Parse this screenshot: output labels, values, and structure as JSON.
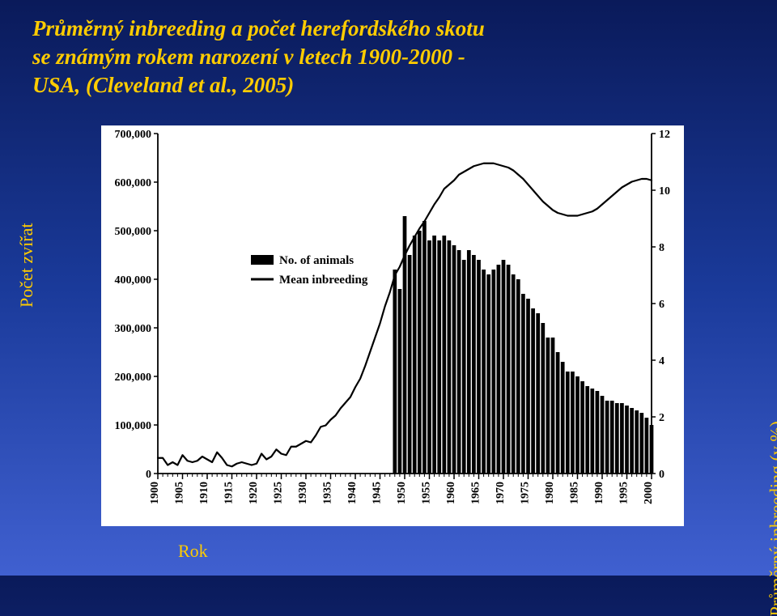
{
  "title_line1": "Průměrný inbreeding a počet herefordského skotu",
  "title_line2": "se známým rokem narození v letech 1900-2000 -",
  "title_line3": "USA, (Cleveland et al., 2005)",
  "y_left_axis_label": "Počet zvířat",
  "y_right_axis_label": "Průměrný inbreeding (v %)",
  "x_axis_label": "Rok",
  "legend": {
    "bars_label": "No. of animals",
    "line_label": "Mean inbreeding"
  },
  "chart": {
    "type": "dual-axis bar+line",
    "background_color": "#ffffff",
    "axis_color": "#000000",
    "bar_color": "#000000",
    "line_color": "#000000",
    "line_width": 2.2,
    "axis_font_size": 14,
    "axis_font_weight": "bold",
    "x_years": [
      1900,
      1901,
      1902,
      1903,
      1904,
      1905,
      1906,
      1907,
      1908,
      1909,
      1910,
      1911,
      1912,
      1913,
      1914,
      1915,
      1916,
      1917,
      1918,
      1919,
      1920,
      1921,
      1922,
      1923,
      1924,
      1925,
      1926,
      1927,
      1928,
      1929,
      1930,
      1931,
      1932,
      1933,
      1934,
      1935,
      1936,
      1937,
      1938,
      1939,
      1940,
      1941,
      1942,
      1943,
      1944,
      1945,
      1946,
      1947,
      1948,
      1949,
      1950,
      1951,
      1952,
      1953,
      1954,
      1955,
      1956,
      1957,
      1958,
      1959,
      1960,
      1961,
      1962,
      1963,
      1964,
      1965,
      1966,
      1967,
      1968,
      1969,
      1970,
      1971,
      1972,
      1973,
      1974,
      1975,
      1976,
      1977,
      1978,
      1979,
      1980,
      1981,
      1982,
      1983,
      1984,
      1985,
      1986,
      1987,
      1988,
      1989,
      1990,
      1991,
      1992,
      1993,
      1994,
      1995,
      1996,
      1997,
      1998,
      1999,
      2000
    ],
    "x_tick_labels": [
      1900,
      1905,
      1910,
      1915,
      1920,
      1925,
      1930,
      1935,
      1940,
      1945,
      1950,
      1955,
      1960,
      1965,
      1970,
      1975,
      1980,
      1985,
      1990,
      1995,
      2000
    ],
    "y_left_min": 0,
    "y_left_max": 700000,
    "y_left_ticks": [
      0,
      100000,
      200000,
      300000,
      400000,
      500000,
      600000,
      700000
    ],
    "y_left_tick_labels": [
      "0",
      "100,000",
      "200,000",
      "300,000",
      "400,000",
      "500,000",
      "600,000",
      "700,000"
    ],
    "y_right_min": 0,
    "y_right_max": 12,
    "y_right_ticks": [
      0,
      2,
      4,
      6,
      8,
      10,
      12
    ],
    "bars_no_of_animals": [
      0,
      0,
      0,
      0,
      0,
      0,
      0,
      0,
      0,
      0,
      0,
      0,
      0,
      0,
      0,
      0,
      0,
      0,
      0,
      0,
      0,
      0,
      0,
      0,
      0,
      0,
      0,
      0,
      0,
      0,
      0,
      0,
      0,
      0,
      0,
      0,
      0,
      0,
      0,
      0,
      0,
      0,
      0,
      0,
      0,
      0,
      0,
      0,
      420000,
      380000,
      530000,
      450000,
      490000,
      500000,
      520000,
      480000,
      490000,
      480000,
      490000,
      480000,
      470000,
      460000,
      440000,
      460000,
      450000,
      440000,
      420000,
      410000,
      420000,
      430000,
      440000,
      430000,
      410000,
      400000,
      370000,
      360000,
      340000,
      330000,
      310000,
      280000,
      280000,
      250000,
      230000,
      210000,
      210000,
      200000,
      190000,
      180000,
      175000,
      170000,
      160000,
      150000,
      150000,
      145000,
      145000,
      140000,
      135000,
      130000,
      125000,
      115000,
      100000
    ],
    "line_mean_inbreeding_pct": [
      0.55,
      0.55,
      0.3,
      0.4,
      0.3,
      0.65,
      0.45,
      0.4,
      0.45,
      0.6,
      0.5,
      0.4,
      0.75,
      0.55,
      0.3,
      0.25,
      0.35,
      0.4,
      0.35,
      0.3,
      0.35,
      0.7,
      0.5,
      0.6,
      0.85,
      0.7,
      0.65,
      0.95,
      0.95,
      1.05,
      1.15,
      1.1,
      1.35,
      1.65,
      1.7,
      1.9,
      2.05,
      2.3,
      2.5,
      2.7,
      3.05,
      3.35,
      3.8,
      4.3,
      4.8,
      5.3,
      5.9,
      6.4,
      7.0,
      7.3,
      7.7,
      8.05,
      8.35,
      8.65,
      8.9,
      9.2,
      9.5,
      9.75,
      10.05,
      10.2,
      10.35,
      10.55,
      10.65,
      10.75,
      10.85,
      10.9,
      10.95,
      10.95,
      10.95,
      10.9,
      10.85,
      10.8,
      10.7,
      10.55,
      10.4,
      10.2,
      10.0,
      9.8,
      9.6,
      9.45,
      9.3,
      9.2,
      9.15,
      9.1,
      9.1,
      9.1,
      9.15,
      9.2,
      9.25,
      9.35,
      9.5,
      9.65,
      9.8,
      9.95,
      10.1,
      10.2,
      10.3,
      10.35,
      10.4,
      10.4,
      10.35
    ]
  }
}
